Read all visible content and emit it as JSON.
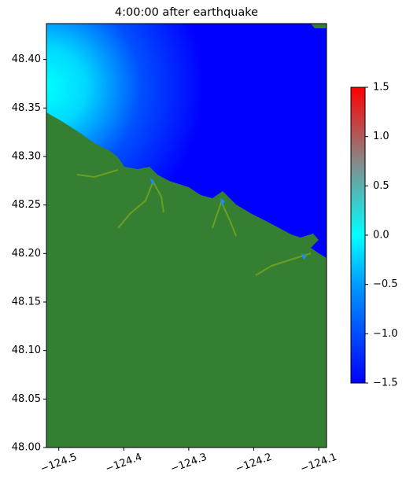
{
  "chart_data": {
    "type": "map",
    "title": "4:00:00 after earthquake",
    "xlim": [
      -124.519,
      -124.088
    ],
    "ylim": [
      48.0,
      48.437
    ],
    "xticks": [
      {
        "value": -124.5,
        "label": "−124.5"
      },
      {
        "value": -124.4,
        "label": "−124.4"
      },
      {
        "value": -124.3,
        "label": "−124.3"
      },
      {
        "value": -124.2,
        "label": "−124.2"
      },
      {
        "value": -124.1,
        "label": "−124.1"
      }
    ],
    "yticks": [
      {
        "value": 48.0,
        "label": "48.00"
      },
      {
        "value": 48.05,
        "label": "48.05"
      },
      {
        "value": 48.1,
        "label": "48.10"
      },
      {
        "value": 48.15,
        "label": "48.15"
      },
      {
        "value": 48.2,
        "label": "48.20"
      },
      {
        "value": 48.25,
        "label": "48.25"
      },
      {
        "value": 48.3,
        "label": "48.30"
      },
      {
        "value": 48.35,
        "label": "48.35"
      },
      {
        "value": 48.4,
        "label": "48.40"
      }
    ],
    "colorbar": {
      "lim": [
        -1.5,
        1.5
      ],
      "ticks": [
        {
          "value": -1.5,
          "label": "−1.5"
        },
        {
          "value": -1.0,
          "label": "−1.0"
        },
        {
          "value": -0.5,
          "label": "−0.5"
        },
        {
          "value": 0.0,
          "label": "0.0"
        },
        0.5,
        {
          "value": 1.0,
          "label": "1.0"
        },
        1.5
      ]
    }
  }
}
